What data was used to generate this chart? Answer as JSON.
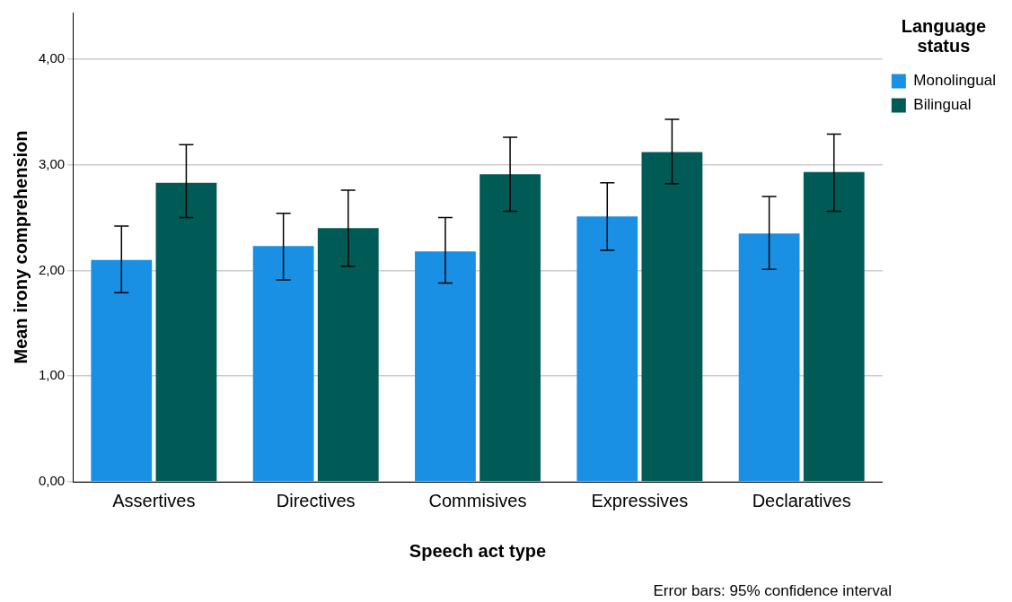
{
  "chart_data": {
    "type": "bar",
    "xlabel": "Speech act type",
    "ylabel": "Mean irony comprehension",
    "legend_title": "Language status",
    "categories": [
      "Assertives",
      "Directives",
      "Commisives",
      "Expressives",
      "Declaratives"
    ],
    "series": [
      {
        "name": "Monolingual",
        "color": "#1a90e4",
        "values": [
          2.1,
          2.23,
          2.18,
          2.51,
          2.35
        ],
        "errors": [
          [
            1.79,
            2.42
          ],
          [
            1.91,
            2.54
          ],
          [
            1.88,
            2.5
          ],
          [
            2.19,
            2.83
          ],
          [
            2.01,
            2.7
          ]
        ]
      },
      {
        "name": "Bilingual",
        "color": "#005b56",
        "values": [
          2.83,
          2.4,
          2.91,
          3.12,
          2.93
        ],
        "errors": [
          [
            2.5,
            3.19
          ],
          [
            2.04,
            2.76
          ],
          [
            2.56,
            3.26
          ],
          [
            2.82,
            3.43
          ],
          [
            2.56,
            3.29
          ]
        ]
      }
    ],
    "ylim": [
      0,
      4.44
    ],
    "yticks": [
      {
        "value": 0,
        "label": "0,00"
      },
      {
        "value": 1,
        "label": "1,00"
      },
      {
        "value": 2,
        "label": "2,00"
      },
      {
        "value": 3,
        "label": "3,00"
      },
      {
        "value": 4,
        "label": "4,00"
      }
    ],
    "grid": "y",
    "legend": "top right",
    "annotations": [
      "Error bars: 95% confidence interval"
    ]
  }
}
